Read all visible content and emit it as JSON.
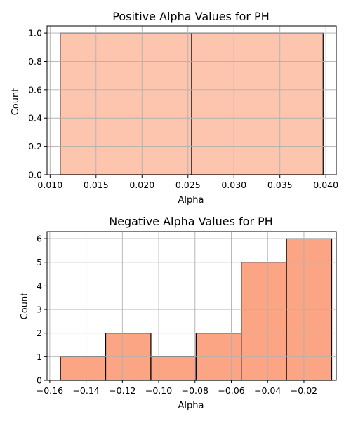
{
  "chart_data": [
    {
      "type": "bar",
      "title": "Positive Alpha Values for PH",
      "xlabel": "Alpha",
      "ylabel": "Count",
      "bins": [
        {
          "x_start": 0.0111,
          "x_end": 0.0254,
          "count": 1
        },
        {
          "x_start": 0.0254,
          "x_end": 0.0397,
          "count": 1
        }
      ],
      "xlim": [
        0.00967,
        0.04113
      ],
      "ylim": [
        0,
        1.05
      ],
      "xticks": [
        0.01,
        0.015,
        0.02,
        0.025,
        0.03,
        0.035,
        0.04
      ],
      "xtick_labels": [
        "0.010",
        "0.015",
        "0.020",
        "0.025",
        "0.030",
        "0.035",
        "0.040"
      ],
      "yticks": [
        0.0,
        0.2,
        0.4,
        0.6,
        0.8,
        1.0
      ],
      "ytick_labels": [
        "0.0",
        "0.2",
        "0.4",
        "0.6",
        "0.8",
        "1.0"
      ],
      "grid": true,
      "bar_color": "#fdc5ae",
      "edge_color": "#000000"
    },
    {
      "type": "bar",
      "title": "Negative Alpha Values for PH",
      "xlabel": "Alpha",
      "ylabel": "Count",
      "bins": [
        {
          "x_start": -0.1541,
          "x_end": -0.1292,
          "count": 1
        },
        {
          "x_start": -0.1292,
          "x_end": -0.1043,
          "count": 2
        },
        {
          "x_start": -0.1043,
          "x_end": -0.0794,
          "count": 1
        },
        {
          "x_start": -0.0794,
          "x_end": -0.0545,
          "count": 2
        },
        {
          "x_start": -0.0545,
          "x_end": -0.0296,
          "count": 5
        },
        {
          "x_start": -0.0296,
          "x_end": -0.0047,
          "count": 6
        }
      ],
      "xlim": [
        -0.1615,
        -0.0022
      ],
      "ylim": [
        0,
        6.3
      ],
      "xticks": [
        -0.16,
        -0.14,
        -0.12,
        -0.1,
        -0.08,
        -0.06,
        -0.04,
        -0.02
      ],
      "xtick_labels": [
        "−0.16",
        "−0.14",
        "−0.12",
        "−0.10",
        "−0.08",
        "−0.06",
        "−0.04",
        "−0.02"
      ],
      "yticks": [
        0,
        1,
        2,
        3,
        4,
        5,
        6
      ],
      "ytick_labels": [
        "0",
        "1",
        "2",
        "3",
        "4",
        "5",
        "6"
      ],
      "grid": true,
      "bar_color": "#fca584",
      "edge_color": "#000000"
    }
  ]
}
